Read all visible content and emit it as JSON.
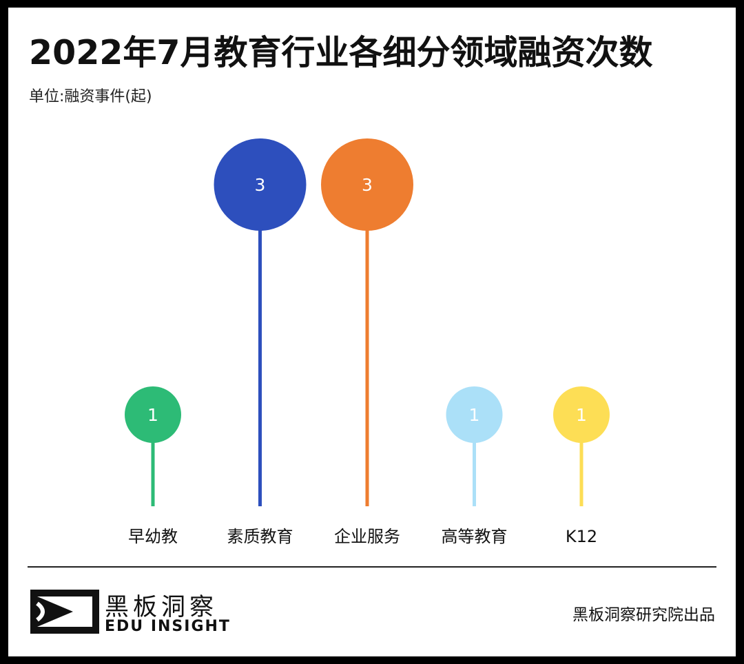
{
  "header": {
    "title": "2022年7月教育行业各细分领域融资次数",
    "unit": "单位:融资事件(起)"
  },
  "chart_data": {
    "type": "bar",
    "categories": [
      "早幼教",
      "素质教育",
      "企业服务",
      "高等教育",
      "K12"
    ],
    "values": [
      1,
      3,
      3,
      1,
      1
    ],
    "colors": [
      "#2dbb76",
      "#2d4fbd",
      "#ee7d30",
      "#abe0f8",
      "#fdde55"
    ],
    "ylim": [
      0,
      3
    ]
  },
  "footer": {
    "brand_cn": "黑板洞察",
    "brand_en": "EDU INSIGHT",
    "credit": "黑板洞察研究院出品"
  }
}
